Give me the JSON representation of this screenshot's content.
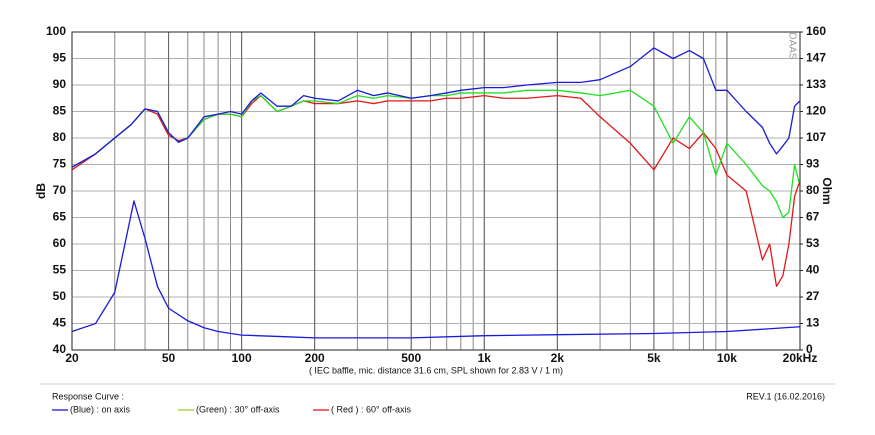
{
  "chart_data": {
    "type": "line",
    "xlabel": "( IEC baffle, mic. distance 31.6 cm, SPL shown for 2.83 V / 1 m)",
    "ylabel": "dB",
    "y2label": "Ohm",
    "watermark": "DAAS",
    "legend_title": "Response Curve :",
    "note": "REV.1 (16.02.2016)",
    "xscale": "log",
    "grid": true,
    "xlim": [
      20,
      20000
    ],
    "xticks": [
      20,
      50,
      100,
      200,
      500,
      {
        "value": 1000,
        "label": "1k"
      },
      {
        "value": 2000,
        "label": "2k"
      },
      {
        "value": 5000,
        "label": "5k"
      },
      {
        "value": 10000,
        "label": "10k"
      },
      {
        "value": 20000,
        "label": "20kHz"
      }
    ],
    "ylim": [
      40,
      100
    ],
    "yticks": [
      40,
      45,
      50,
      55,
      60,
      65,
      70,
      75,
      80,
      85,
      90,
      95,
      100
    ],
    "y2lim": [
      0,
      160
    ],
    "y2ticks": [
      0,
      {
        "value": 13.33,
        "label": "13"
      },
      {
        "value": 26.67,
        "label": "27"
      },
      40,
      {
        "value": 53.33,
        "label": "53"
      },
      {
        "value": 66.67,
        "label": "67"
      },
      80,
      {
        "value": 93.33,
        "label": "93"
      },
      {
        "value": 106.67,
        "label": "107"
      },
      120,
      {
        "value": 133.33,
        "label": "133"
      },
      {
        "value": 146.67,
        "label": "147"
      },
      160
    ],
    "x": [
      20,
      25,
      30,
      35,
      40,
      45,
      50,
      55,
      60,
      70,
      80,
      90,
      100,
      110,
      120,
      140,
      160,
      180,
      200,
      250,
      300,
      350,
      400,
      500,
      600,
      700,
      800,
      1000,
      1200,
      1500,
      2000,
      2500,
      3000,
      4000,
      5000,
      6000,
      7000,
      8000,
      9000,
      10000,
      12000,
      14000,
      15000,
      16000,
      17000,
      18000,
      19000,
      20000
    ],
    "series": [
      {
        "name": "(Blue) : on axis",
        "color": "#1a1adc",
        "values": [
          74.5,
          77,
          80,
          82.5,
          85.5,
          85,
          81,
          79.2,
          80,
          84,
          84.5,
          85,
          84.5,
          87,
          88.5,
          86,
          86,
          88,
          87.5,
          87,
          89,
          88,
          88.5,
          87.5,
          88,
          88.5,
          89,
          89.5,
          89.5,
          90,
          90.5,
          90.5,
          91,
          93.5,
          97,
          95,
          96.5,
          95,
          89,
          89,
          85,
          82,
          79,
          77,
          78.5,
          80,
          86,
          87
        ]
      },
      {
        "name": "(Green) : 30° off-axis",
        "color": "#22e022",
        "legend_color": "#a8d030",
        "values": [
          74.5,
          77,
          80,
          82.5,
          85.5,
          85,
          81,
          79.2,
          80,
          83.5,
          84.5,
          84.5,
          84,
          87,
          88,
          85,
          86,
          87,
          87,
          86.5,
          88,
          87.5,
          88,
          87.5,
          88,
          88,
          88.5,
          88.5,
          88.5,
          89,
          89,
          88.5,
          88,
          89,
          86,
          79,
          84,
          81,
          73,
          79,
          75,
          71,
          70,
          68,
          65,
          66,
          75,
          71
        ]
      },
      {
        "name": "( Red ) : 60° off-axis",
        "color": "#e01818",
        "values": [
          74,
          77,
          80,
          82.5,
          85.5,
          84.5,
          80.5,
          79.5,
          80,
          83.5,
          84.5,
          84.5,
          84,
          86.5,
          88,
          85,
          86,
          87,
          86.5,
          86.5,
          87,
          86.5,
          87,
          87,
          87,
          87.5,
          87.5,
          88,
          87.5,
          87.5,
          88,
          87.5,
          84,
          79,
          74,
          80,
          78,
          81,
          78,
          73,
          70,
          57,
          60,
          52,
          54,
          60,
          69,
          72
        ]
      },
      {
        "color": "#1a1adc",
        "axis": "y2",
        "x": [
          20,
          25,
          30,
          33,
          36,
          40,
          45,
          50,
          60,
          70,
          80,
          100,
          150,
          200,
          500,
          1000,
          2000,
          5000,
          10000,
          20000
        ],
        "values": [
          9.3,
          13.3,
          29,
          53,
          75,
          56,
          32,
          21,
          14.7,
          11.2,
          9.3,
          7.5,
          6.7,
          6.1,
          6.1,
          7.2,
          7.7,
          8.3,
          9.3,
          11.7
        ]
      }
    ]
  }
}
